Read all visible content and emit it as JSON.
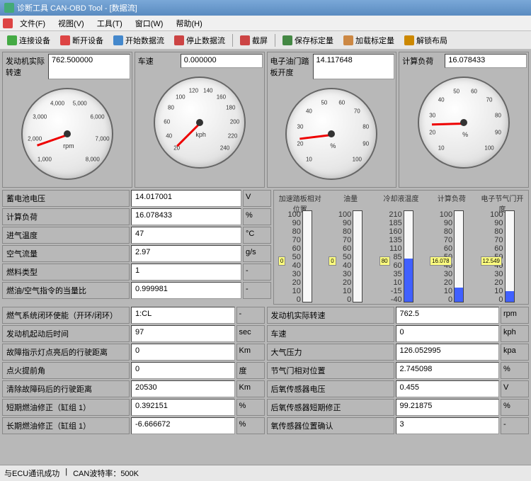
{
  "window": {
    "title": "诊断工具 CAN-OBD Tool - [数据流]"
  },
  "menu": {
    "items": [
      "文件(F)",
      "视图(V)",
      "工具(T)",
      "窗口(W)",
      "帮助(H)"
    ]
  },
  "toolbar": {
    "btns": [
      {
        "label": "连接设备",
        "color": "#4a4"
      },
      {
        "label": "断开设备",
        "color": "#d44"
      },
      {
        "label": "开始数据流",
        "color": "#48c"
      },
      {
        "label": "停止数据流",
        "color": "#c44"
      },
      {
        "label": "截屏",
        "color": "#c44"
      },
      {
        "label": "保存标定量",
        "color": "#484"
      },
      {
        "label": "加载标定量",
        "color": "#c84"
      },
      {
        "label": "解锁布局",
        "color": "#c80"
      }
    ]
  },
  "gauges": [
    {
      "label": "发动机实际转速",
      "value": "762.500000",
      "unit": "rpm",
      "ticks": [
        "1,000",
        "2,000",
        "3,000",
        "4,000",
        "5,000",
        "6,000",
        "7,000",
        "8,000"
      ],
      "angle": 150,
      "max": 8000,
      "val": 762.5
    },
    {
      "label": "车速",
      "value": "0.000000",
      "unit": "kph",
      "ticks": [
        "20",
        "40",
        "60",
        "80",
        "100",
        "120",
        "140",
        "160",
        "180",
        "200",
        "220",
        "240"
      ],
      "angle": 135,
      "max": 240,
      "val": 0
    },
    {
      "label": "电子油门踏板开度",
      "value": "14.117648",
      "unit": "%",
      "ticks": [
        "10",
        "20",
        "30",
        "40",
        "50",
        "60",
        "70",
        "80",
        "90",
        "100"
      ],
      "angle": 160,
      "max": 100,
      "val": 14.1
    },
    {
      "label": "计算负荷",
      "value": "16.078433",
      "unit": "%",
      "ticks": [
        "10",
        "20",
        "30",
        "40",
        "50",
        "60",
        "70",
        "80",
        "90",
        "100"
      ],
      "angle": 165,
      "max": 100,
      "val": 16.1
    }
  ],
  "left_params": [
    {
      "label": "蓄电池电压",
      "value": "14.017001",
      "unit": "V"
    },
    {
      "label": "计算负荷",
      "value": "16.078433",
      "unit": "%"
    },
    {
      "label": "进气温度",
      "value": "47",
      "unit": "°C"
    },
    {
      "label": "空气流量",
      "value": "2.97",
      "unit": "g/s"
    },
    {
      "label": "燃料类型",
      "value": "1",
      "unit": "-"
    },
    {
      "label": "燃油/空气指令的当量比",
      "value": "0.999981",
      "unit": "-"
    },
    {
      "label": "燃气系统闭环使能（开环/闭环）",
      "value": "1:CL",
      "unit": "-"
    },
    {
      "label": "发动机起动后时间",
      "value": "97",
      "unit": "sec"
    },
    {
      "label": "故障指示灯点亮后的行驶距离",
      "value": "0",
      "unit": "Km"
    },
    {
      "label": "点火提前角",
      "value": "0",
      "unit": "度"
    },
    {
      "label": "清除故障码后的行驶距离",
      "value": "20530",
      "unit": "Km"
    },
    {
      "label": "短期燃油修正（缸组 1）",
      "value": "0.392151",
      "unit": "%"
    },
    {
      "label": "长期燃油修正（缸组 1）",
      "value": "-6.666672",
      "unit": "%"
    }
  ],
  "bars": [
    {
      "title": "加速踏板相对位置",
      "value": "0",
      "fill": 0,
      "scale": [
        "100",
        "90",
        "80",
        "70",
        "60",
        "50",
        "40",
        "30",
        "20",
        "10",
        "0"
      ]
    },
    {
      "title": "油量",
      "value": "0",
      "fill": 0,
      "scale": [
        "100",
        "90",
        "80",
        "70",
        "60",
        "50",
        "40",
        "30",
        "20",
        "10",
        "0"
      ]
    },
    {
      "title": "冷却液温度",
      "value": "80",
      "fill": 48,
      "scale": [
        "210",
        "185",
        "160",
        "135",
        "110",
        "85",
        "60",
        "35",
        "10",
        "-15",
        "-40"
      ]
    },
    {
      "title": "计算负荷",
      "value": "16.078",
      "fill": 16,
      "scale": [
        "100",
        "90",
        "80",
        "70",
        "60",
        "50",
        "40",
        "30",
        "20",
        "10",
        "0"
      ]
    },
    {
      "title": "电子节气门开度",
      "value": "12.549",
      "fill": 12,
      "scale": [
        "100",
        "90",
        "80",
        "70",
        "60",
        "50",
        "40",
        "30",
        "20",
        "10",
        "0"
      ]
    }
  ],
  "right_params": [
    {
      "label": "发动机实际转速",
      "value": "762.5",
      "unit": "rpm"
    },
    {
      "label": "车速",
      "value": "0",
      "unit": "kph"
    },
    {
      "label": "大气压力",
      "value": "126.052995",
      "unit": "kpa"
    },
    {
      "label": "节气门相对位置",
      "value": "2.745098",
      "unit": "%"
    },
    {
      "label": "后氧传感器电压",
      "value": "0.455",
      "unit": "V"
    },
    {
      "label": "后氧传感器短期修正",
      "value": "99.21875",
      "unit": "%"
    },
    {
      "label": "氧传感器位置确认",
      "value": "3",
      "unit": "-"
    }
  ],
  "status": {
    "ecu": "与ECU通讯成功",
    "rate": "CAN波特率：500K"
  }
}
